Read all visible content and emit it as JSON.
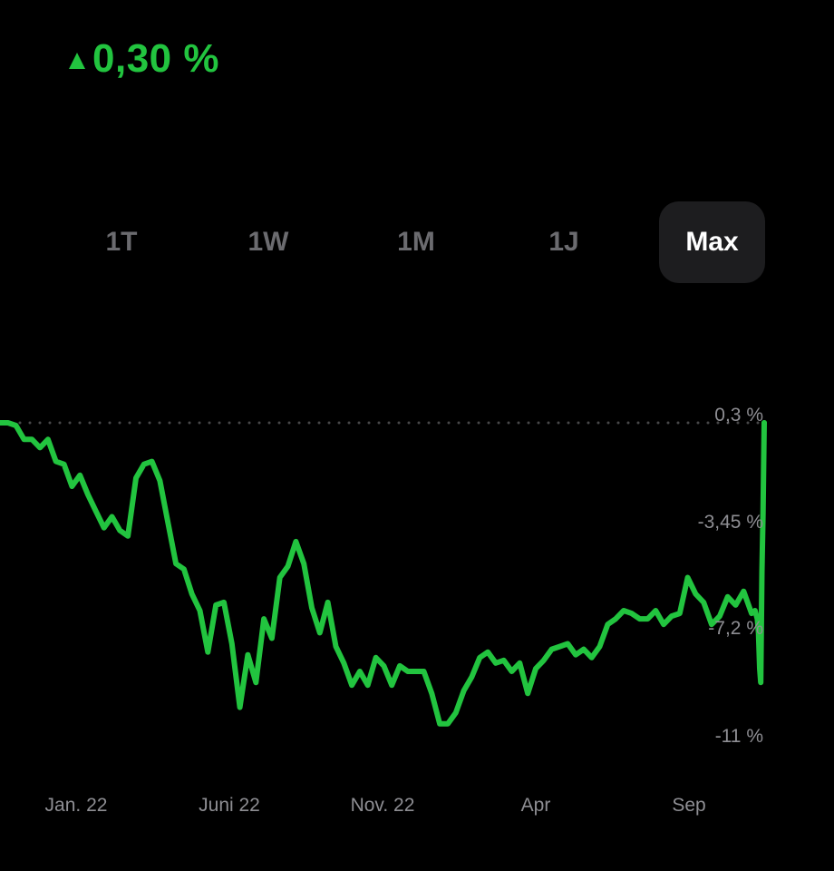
{
  "header": {
    "change_text": "0,30 %",
    "trend": "up",
    "accent_color": "#22c43f"
  },
  "range_tabs": [
    {
      "label": "1T",
      "active": false
    },
    {
      "label": "1W",
      "active": false
    },
    {
      "label": "1M",
      "active": false
    },
    {
      "label": "1J",
      "active": false
    },
    {
      "label": "Max",
      "active": true
    }
  ],
  "chart_data": {
    "type": "line",
    "line_color": "#22c43f",
    "reference_line": {
      "value": 0.3,
      "style": "dotted"
    },
    "y_tick_labels": [
      "0,3 %",
      "-3,45 %",
      "-7,2 %",
      "-11 %"
    ],
    "y_ticks": [
      0.3,
      -3.45,
      -7.2,
      -11
    ],
    "x_tick_labels": [
      "Jan. 22",
      "Juni 22",
      "Nov. 22",
      "Apr",
      "Sep"
    ],
    "x_ticks": [
      "2022-01-01",
      "2022-06-01",
      "2022-11-01",
      "2023-04-01",
      "2023-09-01"
    ],
    "xlim": [
      "2021-12-05",
      "2023-10-05"
    ],
    "ylim": [
      -11,
      0.3
    ],
    "series": [
      {
        "points": [
          [
            "2021-12-05",
            0.3
          ],
          [
            "2021-12-12",
            0.3
          ],
          [
            "2021-12-19",
            0.2
          ],
          [
            "2021-12-26",
            -0.3
          ],
          [
            "2022-01-02",
            -0.3
          ],
          [
            "2022-01-09",
            -0.6
          ],
          [
            "2022-01-16",
            -0.3
          ],
          [
            "2022-01-23",
            -1.1
          ],
          [
            "2022-01-30",
            -1.2
          ],
          [
            "2022-02-06",
            -2.0
          ],
          [
            "2022-02-13",
            -1.6
          ],
          [
            "2022-02-20",
            -2.3
          ],
          [
            "2022-02-27",
            -2.9
          ],
          [
            "2022-03-06",
            -3.5
          ],
          [
            "2022-03-13",
            -3.1
          ],
          [
            "2022-03-20",
            -3.6
          ],
          [
            "2022-03-27",
            -3.8
          ],
          [
            "2022-04-03",
            -1.7
          ],
          [
            "2022-04-10",
            -1.2
          ],
          [
            "2022-04-17",
            -1.1
          ],
          [
            "2022-04-24",
            -1.8
          ],
          [
            "2022-05-01",
            -3.3
          ],
          [
            "2022-05-08",
            -4.8
          ],
          [
            "2022-05-15",
            -5.0
          ],
          [
            "2022-05-22",
            -5.9
          ],
          [
            "2022-05-29",
            -6.5
          ],
          [
            "2022-06-05",
            -8.0
          ],
          [
            "2022-06-12",
            -6.3
          ],
          [
            "2022-06-19",
            -6.2
          ],
          [
            "2022-06-26",
            -7.7
          ],
          [
            "2022-07-03",
            -10.0
          ],
          [
            "2022-07-10",
            -8.1
          ],
          [
            "2022-07-17",
            -9.1
          ],
          [
            "2022-07-24",
            -6.8
          ],
          [
            "2022-07-31",
            -7.5
          ],
          [
            "2022-08-07",
            -5.3
          ],
          [
            "2022-08-14",
            -4.9
          ],
          [
            "2022-08-21",
            -4.0
          ],
          [
            "2022-08-28",
            -4.8
          ],
          [
            "2022-09-04",
            -6.4
          ],
          [
            "2022-09-11",
            -7.3
          ],
          [
            "2022-09-18",
            -6.2
          ],
          [
            "2022-09-25",
            -7.8
          ],
          [
            "2022-10-02",
            -8.4
          ],
          [
            "2022-10-09",
            -9.2
          ],
          [
            "2022-10-16",
            -8.7
          ],
          [
            "2022-10-23",
            -9.2
          ],
          [
            "2022-10-30",
            -8.2
          ],
          [
            "2022-11-06",
            -8.5
          ],
          [
            "2022-11-13",
            -9.2
          ],
          [
            "2022-11-20",
            -8.5
          ],
          [
            "2022-11-27",
            -8.7
          ],
          [
            "2022-12-04",
            -8.7
          ],
          [
            "2022-12-11",
            -8.7
          ],
          [
            "2022-12-18",
            -9.5
          ],
          [
            "2022-12-25",
            -10.6
          ],
          [
            "2023-01-01",
            -10.6
          ],
          [
            "2023-01-08",
            -10.2
          ],
          [
            "2023-01-15",
            -9.4
          ],
          [
            "2023-01-22",
            -8.9
          ],
          [
            "2023-01-29",
            -8.2
          ],
          [
            "2023-02-05",
            -8.0
          ],
          [
            "2023-02-12",
            -8.4
          ],
          [
            "2023-02-19",
            -8.3
          ],
          [
            "2023-02-26",
            -8.7
          ],
          [
            "2023-03-05",
            -8.4
          ],
          [
            "2023-03-12",
            -9.5
          ],
          [
            "2023-03-19",
            -8.6
          ],
          [
            "2023-03-26",
            -8.3
          ],
          [
            "2023-04-02",
            -7.9
          ],
          [
            "2023-04-09",
            -7.8
          ],
          [
            "2023-04-16",
            -7.7
          ],
          [
            "2023-04-23",
            -8.1
          ],
          [
            "2023-04-30",
            -7.9
          ],
          [
            "2023-05-07",
            -8.2
          ],
          [
            "2023-05-14",
            -7.8
          ],
          [
            "2023-05-21",
            -7.0
          ],
          [
            "2023-05-28",
            -6.8
          ],
          [
            "2023-06-04",
            -6.5
          ],
          [
            "2023-06-11",
            -6.6
          ],
          [
            "2023-06-18",
            -6.8
          ],
          [
            "2023-06-25",
            -6.8
          ],
          [
            "2023-07-02",
            -6.5
          ],
          [
            "2023-07-09",
            -7.0
          ],
          [
            "2023-07-16",
            -6.7
          ],
          [
            "2023-07-23",
            -6.6
          ],
          [
            "2023-07-30",
            -5.3
          ],
          [
            "2023-08-06",
            -5.9
          ],
          [
            "2023-08-13",
            -6.2
          ],
          [
            "2023-08-20",
            -7.0
          ],
          [
            "2023-08-27",
            -6.7
          ],
          [
            "2023-09-03",
            -6.0
          ],
          [
            "2023-09-10",
            -6.3
          ],
          [
            "2023-09-17",
            -5.8
          ],
          [
            "2023-09-24",
            -6.6
          ],
          [
            "2023-09-27",
            -6.5
          ],
          [
            "2023-09-29",
            -6.8
          ],
          [
            "2023-09-30",
            -7.3
          ],
          [
            "2023-10-01",
            -8.6
          ],
          [
            "2023-10-02",
            -9.1
          ],
          [
            "2023-10-03",
            -5.1
          ],
          [
            "2023-10-04",
            -3.0
          ],
          [
            "2023-10-05",
            0.3
          ]
        ]
      }
    ]
  }
}
